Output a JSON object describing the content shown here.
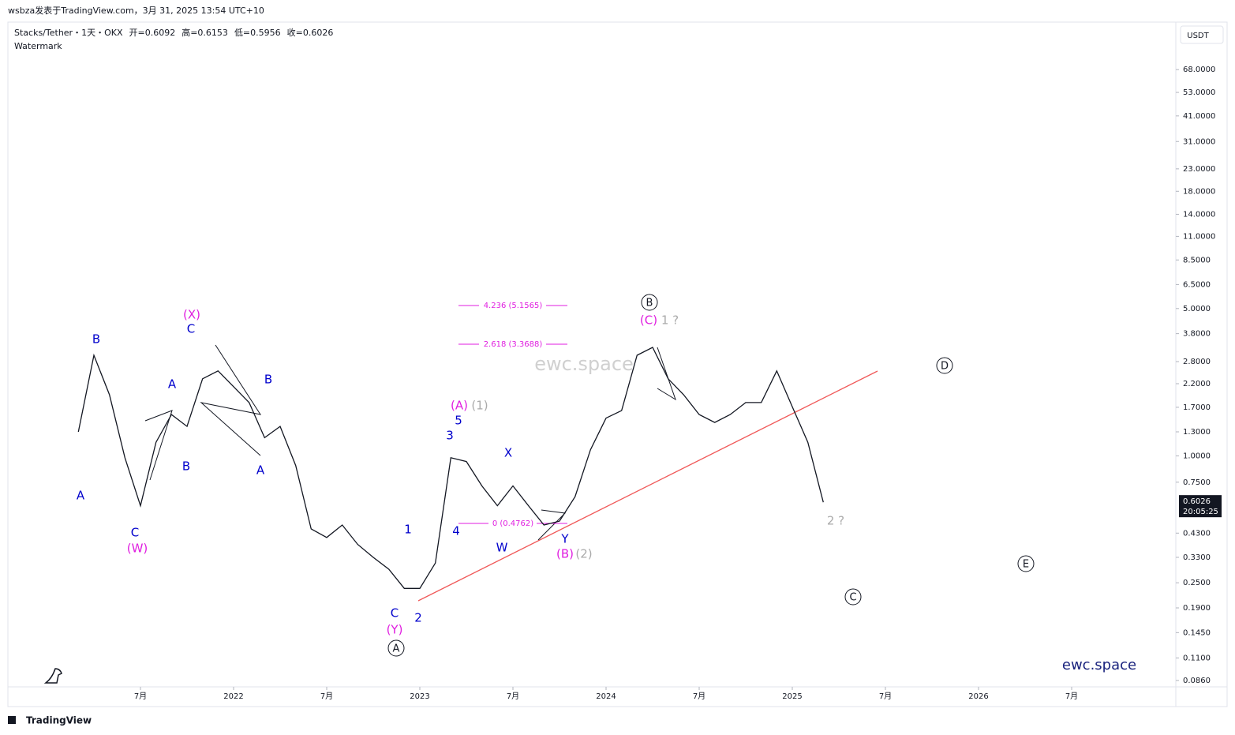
{
  "header": {
    "published": "wsbza发表于TradingView.com，3月 31, 2025 13:54 UTC+10"
  },
  "chart_data": {
    "type": "line",
    "title": "Stacks/Tether・1天・OKX",
    "ohlc_labels": [
      "开=0.6092",
      "高=0.6153",
      "低=0.5956",
      "收=0.6026"
    ],
    "subtitle": "Watermark",
    "currency": "USDT",
    "last_price": 0.6026,
    "countdown": "20:05:25",
    "log_scale": true,
    "color": "#131722",
    "x": [
      "2021-03",
      "2021-04",
      "2021-05",
      "2021-06",
      "2021-07",
      "2021-08",
      "2021-09",
      "2021-10",
      "2021-11",
      "2021-12",
      "2022-01",
      "2022-02",
      "2022-03",
      "2022-04",
      "2022-05",
      "2022-06",
      "2022-07",
      "2022-08",
      "2022-09",
      "2022-10",
      "2022-11",
      "2022-12",
      "2023-01",
      "2023-02",
      "2023-03",
      "2023-04",
      "2023-05",
      "2023-06",
      "2023-07",
      "2023-08",
      "2023-09",
      "2023-10",
      "2023-11",
      "2023-12",
      "2024-01",
      "2024-02",
      "2024-03",
      "2024-04",
      "2024-05",
      "2024-06",
      "2024-07",
      "2024-08",
      "2024-09",
      "2024-10",
      "2024-11",
      "2024-12",
      "2025-01",
      "2025-02",
      "2025-03"
    ],
    "values": [
      1.3,
      3.0,
      1.95,
      0.98,
      0.58,
      1.16,
      1.57,
      1.38,
      2.32,
      2.53,
      2.13,
      1.79,
      1.22,
      1.38,
      0.9,
      0.45,
      0.41,
      0.47,
      0.38,
      0.33,
      0.29,
      0.235,
      0.235,
      0.31,
      0.98,
      0.94,
      0.72,
      0.58,
      0.72,
      0.58,
      0.47,
      0.49,
      0.64,
      1.07,
      1.51,
      1.64,
      3.0,
      3.27,
      2.32,
      1.95,
      1.57,
      1.44,
      1.57,
      1.79,
      1.79,
      2.53,
      1.71,
      1.16,
      0.6026
    ],
    "xlim": [
      "2020-10",
      "2027-01"
    ],
    "xticks": [
      {
        "value": "2021-07",
        "label": "7月"
      },
      {
        "value": "2022-01",
        "label": "2022"
      },
      {
        "value": "2022-07",
        "label": "7月"
      },
      {
        "value": "2023-01",
        "label": "2023"
      },
      {
        "value": "2023-07",
        "label": "7月"
      },
      {
        "value": "2024-01",
        "label": "2024"
      },
      {
        "value": "2024-07",
        "label": "7月"
      },
      {
        "value": "2025-01",
        "label": "2025"
      },
      {
        "value": "2025-07",
        "label": "7月"
      },
      {
        "value": "2026-01",
        "label": "2026"
      },
      {
        "value": "2026-07",
        "label": "7月"
      }
    ],
    "ylim": [
      0.0802,
      112.3
    ],
    "yticks": [
      {
        "value": 68,
        "label": "68.0000"
      },
      {
        "value": 53,
        "label": "53.0000"
      },
      {
        "value": 41,
        "label": "41.0000"
      },
      {
        "value": 31,
        "label": "31.0000"
      },
      {
        "value": 23,
        "label": "23.0000"
      },
      {
        "value": 18,
        "label": "18.0000"
      },
      {
        "value": 14,
        "label": "14.0000"
      },
      {
        "value": 11,
        "label": "11.0000"
      },
      {
        "value": 8.5,
        "label": "8.5000"
      },
      {
        "value": 6.5,
        "label": "6.5000"
      },
      {
        "value": 5,
        "label": "5.0000"
      },
      {
        "value": 3.8,
        "label": "3.8000"
      },
      {
        "value": 2.8,
        "label": "2.8000"
      },
      {
        "value": 2.2,
        "label": "2.2000"
      },
      {
        "value": 1.7,
        "label": "1.7000"
      },
      {
        "value": 1.3,
        "label": "1.3000"
      },
      {
        "value": 1,
        "label": "1.0000"
      },
      {
        "value": 0.75,
        "label": "0.7500"
      },
      {
        "value": 0.43,
        "label": "0.4300"
      },
      {
        "value": 0.33,
        "label": "0.3300"
      },
      {
        "value": 0.25,
        "label": "0.2500"
      },
      {
        "value": 0.19,
        "label": "0.1900"
      },
      {
        "value": 0.145,
        "label": "0.1450"
      },
      {
        "value": 0.11,
        "label": "0.1100"
      },
      {
        "value": 0.086,
        "label": "0.0860"
      }
    ],
    "annotations": [
      {
        "text": "A",
        "color": "#0000cc"
      },
      {
        "text": "B",
        "color": "#0000cc"
      },
      {
        "text": "C",
        "color": "#0000cc"
      },
      {
        "text": "A",
        "color": "#0000cc"
      },
      {
        "text": "B",
        "color": "#0000cc"
      },
      {
        "text": "C",
        "color": "#0000cc"
      },
      {
        "text": "B",
        "color": "#0000cc"
      },
      {
        "text": "A",
        "color": "#0000cc"
      },
      {
        "text": "C",
        "color": "#0000cc"
      },
      {
        "text": "1",
        "color": "#0000cc"
      },
      {
        "text": "2",
        "color": "#0000cc"
      },
      {
        "text": "3",
        "color": "#0000cc"
      },
      {
        "text": "4",
        "color": "#0000cc"
      },
      {
        "text": "5",
        "color": "#0000cc"
      },
      {
        "text": "X",
        "color": "#0000cc"
      },
      {
        "text": "W",
        "color": "#0000cc"
      },
      {
        "text": "Y",
        "color": "#0000cc"
      },
      {
        "text": "(W)",
        "color": "#e01ee0"
      },
      {
        "text": "(X)",
        "color": "#e01ee0"
      },
      {
        "text": "(Y)",
        "color": "#e01ee0"
      },
      {
        "text": "(A)",
        "color": "#e01ee0"
      },
      {
        "text": "(B)",
        "color": "#e01ee0"
      },
      {
        "text": "(C)",
        "color": "#e01ee0"
      },
      {
        "text": "(1)",
        "color": "#aaaaaa"
      },
      {
        "text": "(2)",
        "color": "#aaaaaa"
      },
      {
        "text": "1 ?",
        "color": "#aaaaaa"
      },
      {
        "text": "2 ?",
        "color": "#aaaaaa"
      }
    ],
    "circled": [
      "A",
      "B",
      "C",
      "D",
      "E"
    ],
    "fib_levels": [
      "4.236 (5.1565)",
      "2.618 (3.3688)",
      "0 (0.4762)"
    ],
    "watermark": "ewc.space",
    "brand": "ewc.space"
  },
  "footer": {
    "logo": "TradingView"
  }
}
